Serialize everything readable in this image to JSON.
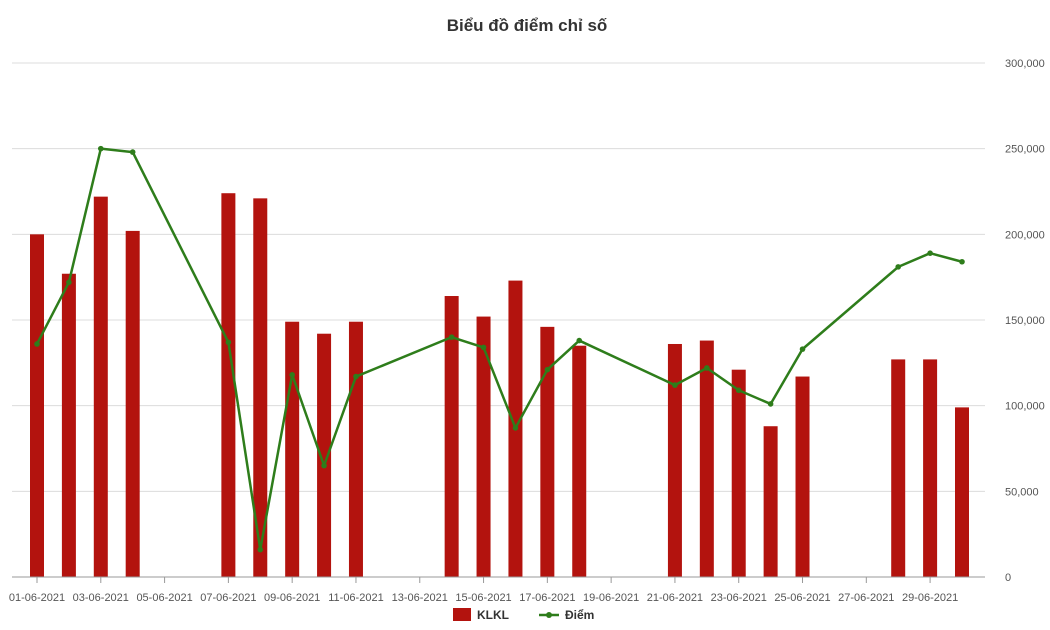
{
  "chart_data": {
    "type": "bar",
    "title": "Biểu đồ điểm chỉ số",
    "xlabel": "",
    "ylabel": "",
    "ylim": [
      0,
      300000
    ],
    "grid": true,
    "legend_position": "bottom-center",
    "y_ticks": [
      "0",
      "50,000",
      "100,000",
      "150,000",
      "200,000",
      "250,000",
      "300,000"
    ],
    "x_ticks": [
      "01-06-2021",
      "03-06-2021",
      "05-06-2021",
      "07-06-2021",
      "09-06-2021",
      "11-06-2021",
      "13-06-2021",
      "15-06-2021",
      "17-06-2021",
      "19-06-2021",
      "21-06-2021",
      "23-06-2021",
      "25-06-2021",
      "27-06-2021",
      "29-06-2021"
    ],
    "categories": [
      "01-06-2021",
      "02-06-2021",
      "03-06-2021",
      "04-06-2021",
      "05-06-2021",
      "06-06-2021",
      "07-06-2021",
      "08-06-2021",
      "09-06-2021",
      "10-06-2021",
      "11-06-2021",
      "12-06-2021",
      "13-06-2021",
      "14-06-2021",
      "15-06-2021",
      "16-06-2021",
      "17-06-2021",
      "18-06-2021",
      "19-06-2021",
      "20-06-2021",
      "21-06-2021",
      "22-06-2021",
      "23-06-2021",
      "24-06-2021",
      "25-06-2021",
      "26-06-2021",
      "27-06-2021",
      "28-06-2021",
      "29-06-2021",
      "30-06-2021"
    ],
    "series": [
      {
        "name": "KLKL",
        "kind": "bar",
        "color": "#b3130e",
        "values": [
          200000,
          177000,
          222000,
          202000,
          null,
          null,
          224000,
          221000,
          149000,
          142000,
          149000,
          null,
          null,
          164000,
          152000,
          173000,
          146000,
          135000,
          null,
          null,
          136000,
          138000,
          121000,
          88000,
          117000,
          null,
          null,
          127000,
          127000,
          99000
        ]
      },
      {
        "name": "Điểm",
        "kind": "line",
        "color": "#2e7d1b",
        "values": [
          136000,
          172000,
          250000,
          248000,
          null,
          null,
          137000,
          16000,
          118000,
          65000,
          117000,
          null,
          null,
          140000,
          134000,
          87000,
          121000,
          138000,
          null,
          null,
          112000,
          122000,
          109000,
          101000,
          133000,
          null,
          null,
          181000,
          189000,
          184000
        ]
      }
    ]
  }
}
